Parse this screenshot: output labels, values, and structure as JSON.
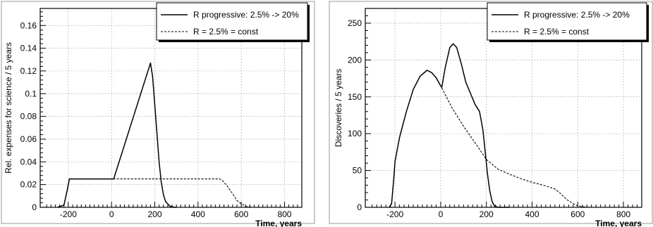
{
  "chart_data": [
    {
      "type": "line",
      "xlabel": "Time, years",
      "ylabel": "Rel. expenses for science / 5 years",
      "xlim": [
        -330,
        880
      ],
      "ylim": [
        0,
        0.175
      ],
      "xticks": [
        -200,
        0,
        200,
        400,
        600,
        800
      ],
      "xtick_labels": [
        "-200",
        "0",
        "200",
        "400",
        "600",
        "800"
      ],
      "yticks": [
        0,
        0.02,
        0.04,
        0.06,
        0.08,
        0.1,
        0.12,
        0.14,
        0.16
      ],
      "ytick_labels": [
        "0",
        "0.02",
        "0.04",
        "0.06",
        "0.08",
        "0.1",
        "0.12",
        "0.14",
        "0.16"
      ],
      "grid": true,
      "legend_position": "top-right",
      "series": [
        {
          "name": "R progressive: 2.5% -> 20%",
          "style": "solid",
          "x": [
            -250,
            -220,
            -205,
            -195,
            0,
            10,
            180,
            190,
            200,
            210,
            220,
            230,
            240,
            250,
            270,
            290,
            300
          ],
          "y": [
            0,
            0.002,
            0.015,
            0.025,
            0.025,
            0.025,
            0.127,
            0.115,
            0.09,
            0.065,
            0.04,
            0.022,
            0.011,
            0.005,
            0.001,
            0.0,
            0.0
          ]
        },
        {
          "name": "R = 2.5% = const",
          "style": "dashed",
          "x": [
            -250,
            -220,
            -205,
            -195,
            0,
            200,
            400,
            500,
            510,
            530,
            560,
            580,
            600,
            620,
            650,
            700,
            850
          ],
          "y": [
            0,
            0.002,
            0.015,
            0.025,
            0.025,
            0.025,
            0.025,
            0.025,
            0.024,
            0.02,
            0.012,
            0.006,
            0.003,
            0.001,
            0.0,
            0.0,
            0.0
          ]
        }
      ]
    },
    {
      "type": "line",
      "xlabel": "Time, years",
      "ylabel": "Discoveries / 5 years",
      "xlim": [
        -330,
        880
      ],
      "ylim": [
        0,
        270
      ],
      "xticks": [
        -200,
        0,
        200,
        400,
        600,
        800
      ],
      "xtick_labels": [
        "-200",
        "0",
        "200",
        "400",
        "600",
        "800"
      ],
      "yticks": [
        0,
        50,
        100,
        150,
        200,
        250
      ],
      "ytick_labels": [
        "0",
        "50",
        "100",
        "150",
        "200",
        "250"
      ],
      "grid": true,
      "legend_position": "top-right",
      "series": [
        {
          "name": "R progressive: 2.5% -> 20%",
          "style": "solid",
          "x": [
            -225,
            -215,
            -205,
            -200,
            -180,
            -150,
            -120,
            -90,
            -60,
            -40,
            -20,
            0,
            5,
            20,
            40,
            55,
            70,
            90,
            110,
            130,
            150,
            170,
            185,
            195,
            205,
            215,
            225,
            235,
            250,
            265,
            300
          ],
          "y": [
            0,
            5,
            40,
            62,
            95,
            130,
            160,
            178,
            186,
            183,
            176,
            165,
            163,
            190,
            217,
            222,
            217,
            195,
            170,
            155,
            140,
            130,
            105,
            75,
            45,
            22,
            8,
            2,
            0,
            0,
            0
          ]
        },
        {
          "name": "R = 2.5% = const",
          "style": "dashed",
          "x": [
            -225,
            -215,
            -205,
            -200,
            -180,
            -150,
            -120,
            -90,
            -60,
            -40,
            -20,
            0,
            50,
            100,
            150,
            200,
            250,
            300,
            350,
            400,
            450,
            500,
            520,
            550,
            580,
            600,
            620,
            650,
            700,
            800
          ],
          "y": [
            0,
            5,
            40,
            62,
            95,
            130,
            160,
            178,
            186,
            183,
            176,
            165,
            135,
            110,
            88,
            65,
            52,
            45,
            39,
            34,
            30,
            25,
            20,
            11,
            5,
            2,
            1,
            0,
            0,
            0
          ]
        }
      ]
    }
  ]
}
